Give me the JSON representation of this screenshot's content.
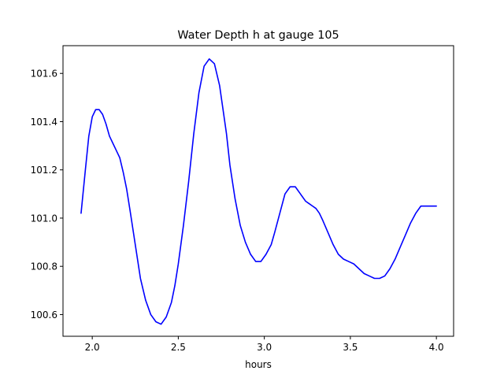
{
  "chart_data": {
    "type": "line",
    "title": "Water Depth h at gauge 105",
    "xlabel": "hours",
    "ylabel": "",
    "xlim": [
      1.83,
      4.1
    ],
    "ylim": [
      100.51,
      101.715
    ],
    "grid": false,
    "legend": "none",
    "xticks": [
      2.0,
      2.5,
      3.0,
      3.5,
      4.0
    ],
    "xtick_labels": [
      "2.0",
      "2.5",
      "3.0",
      "3.5",
      "4.0"
    ],
    "yticks": [
      100.6,
      100.8,
      101.0,
      101.2,
      101.4,
      101.6
    ],
    "ytick_labels": [
      "100.6",
      "100.8",
      "101.0",
      "101.2",
      "101.4",
      "101.6"
    ],
    "series": [
      {
        "color": "#0000ff",
        "x": [
          1.935,
          1.96,
          1.98,
          2.0,
          2.02,
          2.04,
          2.06,
          2.08,
          2.1,
          2.12,
          2.14,
          2.16,
          2.18,
          2.2,
          2.22,
          2.25,
          2.28,
          2.31,
          2.34,
          2.37,
          2.4,
          2.43,
          2.46,
          2.48,
          2.5,
          2.53,
          2.56,
          2.59,
          2.62,
          2.65,
          2.68,
          2.71,
          2.74,
          2.76,
          2.78,
          2.8,
          2.83,
          2.86,
          2.89,
          2.92,
          2.95,
          2.98,
          3.01,
          3.04,
          3.06,
          3.09,
          3.12,
          3.15,
          3.18,
          3.21,
          3.24,
          3.26,
          3.28,
          3.3,
          3.32,
          3.34,
          3.37,
          3.4,
          3.43,
          3.46,
          3.49,
          3.52,
          3.55,
          3.58,
          3.61,
          3.64,
          3.67,
          3.7,
          3.73,
          3.76,
          3.79,
          3.82,
          3.85,
          3.88,
          3.91,
          3.94,
          3.97,
          4.0
        ],
        "y": [
          101.02,
          101.2,
          101.34,
          101.42,
          101.45,
          101.45,
          101.43,
          101.39,
          101.34,
          101.31,
          101.28,
          101.25,
          101.19,
          101.12,
          101.03,
          100.89,
          100.75,
          100.66,
          100.6,
          100.57,
          100.56,
          100.59,
          100.65,
          100.72,
          100.81,
          100.97,
          101.15,
          101.35,
          101.52,
          101.63,
          101.66,
          101.64,
          101.55,
          101.45,
          101.35,
          101.22,
          101.08,
          100.97,
          100.9,
          100.85,
          100.82,
          100.82,
          100.85,
          100.89,
          100.94,
          101.02,
          101.1,
          101.13,
          101.13,
          101.1,
          101.07,
          101.06,
          101.05,
          101.04,
          101.02,
          100.99,
          100.94,
          100.89,
          100.85,
          100.83,
          100.82,
          100.81,
          100.79,
          100.77,
          100.76,
          100.75,
          100.75,
          100.76,
          100.79,
          100.83,
          100.88,
          100.93,
          100.98,
          101.02,
          101.05,
          101.05,
          101.05,
          101.05
        ]
      }
    ]
  }
}
